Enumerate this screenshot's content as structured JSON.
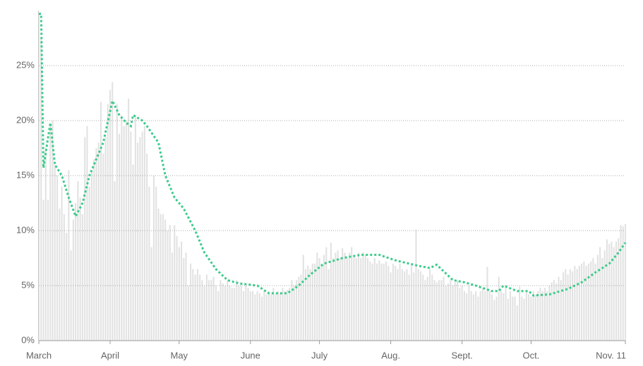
{
  "chart_data": {
    "type": "bar",
    "xlim": [
      0,
      255
    ],
    "xticks": [
      {
        "value": 0,
        "label": "March"
      },
      {
        "value": 31,
        "label": "April"
      },
      {
        "value": 61,
        "label": "May"
      },
      {
        "value": 92,
        "label": "June"
      },
      {
        "value": 122,
        "label": "July"
      },
      {
        "value": 153,
        "label": "Aug."
      },
      {
        "value": 184,
        "label": "Sept."
      },
      {
        "value": 214,
        "label": "Oct."
      },
      {
        "value": 255,
        "label": "Nov. 11"
      }
    ],
    "ylim": [
      0,
      30
    ],
    "yticks": [
      {
        "value": 0,
        "label": "0%"
      },
      {
        "value": 5,
        "label": "5%"
      },
      {
        "value": 10,
        "label": "10%"
      },
      {
        "value": 15,
        "label": "15%"
      },
      {
        "value": 20,
        "label": "20%"
      },
      {
        "value": 25,
        "label": "25%"
      }
    ],
    "grid": true,
    "series": [
      {
        "type": "bar",
        "color": "#e2e2e2",
        "values": [
          29.7,
          27.5,
          12.8,
          17.5,
          12.8,
          19.5,
          20,
          16,
          15,
          12,
          14,
          11.5,
          9.8,
          15.5,
          8.2,
          11,
          12.5,
          14.5,
          13,
          11.5,
          18.5,
          19.5,
          14,
          15.5,
          16.5,
          17.5,
          18,
          21.7,
          17,
          18.5,
          21.5,
          22.8,
          23.5,
          14.5,
          21.5,
          18.8,
          20.5,
          19.5,
          20,
          22,
          19,
          16,
          20.5,
          18,
          18.5,
          19,
          19.5,
          17,
          14,
          8.5,
          15,
          14,
          12,
          11.5,
          11.5,
          11,
          10,
          10.5,
          8,
          10.5,
          9.5,
          8.5,
          9,
          7.5,
          8,
          5,
          7,
          6.5,
          6,
          6.5,
          6,
          5.5,
          5,
          6,
          5.5,
          5.5,
          5.8,
          5,
          4.5,
          5.5,
          5.2,
          5,
          5.5,
          5,
          4.8,
          4.8,
          5.5,
          5,
          5,
          4.5,
          5,
          4.8,
          4.5,
          4.5,
          4.2,
          4.5,
          4.3,
          4,
          4.5,
          4.2,
          4.5,
          4.2,
          4.8,
          4.2,
          4.5,
          4.3,
          4.8,
          4.5,
          4.6,
          4.8,
          5.5,
          5,
          5.5,
          5.8,
          6,
          7.8,
          6.5,
          6.8,
          6.5,
          7,
          7,
          8,
          7.5,
          7,
          7.8,
          8.5,
          6.5,
          8.9,
          7.5,
          8,
          8.2,
          7.5,
          8.4,
          8,
          7.5,
          8,
          8.5,
          7.8,
          7.5,
          8,
          7.5,
          8,
          7.8,
          7.5,
          7.2,
          7,
          7.5,
          7,
          7.3,
          7,
          7,
          7.2,
          6.8,
          6.2,
          7,
          6.8,
          6.5,
          7,
          6.5,
          6.3,
          6.5,
          6,
          6.8,
          6.2,
          10.1,
          6.5,
          6.3,
          6,
          5.5,
          5.8,
          6.5,
          6,
          5.5,
          5.3,
          5.5,
          5.5,
          5.8,
          5,
          5.2,
          5.5,
          5,
          5.3,
          5.5,
          4.8,
          5,
          4.5,
          4.3,
          5,
          4.5,
          4.2,
          4.5,
          4,
          4.5,
          4.8,
          4.5,
          6.7,
          4.5,
          4.2,
          3.7,
          4,
          5.8,
          4.5,
          4.3,
          4.8,
          3.8,
          4.5,
          4,
          4,
          3.2,
          4.9,
          4,
          3.8,
          4.5,
          4.2,
          4,
          4.5,
          4.2,
          4.5,
          4.8,
          4.5,
          4.8,
          4.5,
          5,
          5.3,
          5.5,
          5.2,
          5.8,
          5.5,
          6.2,
          6.5,
          6,
          6.5,
          6.3,
          6.8,
          6.5,
          6.8,
          7,
          7.2,
          6.8,
          7,
          7.2,
          7.5,
          7,
          7.8,
          8.5,
          7.5,
          8.2,
          9.2,
          8.8,
          9,
          8.5,
          9,
          9.3,
          10.5,
          10.4,
          10.6
        ]
      },
      {
        "type": "line",
        "color": "#3ccb8b",
        "x": [
          0,
          1,
          2,
          5,
          7,
          10,
          13,
          16,
          19,
          22,
          26,
          28,
          32,
          35,
          38,
          40,
          41,
          45,
          47,
          52,
          55,
          59,
          63,
          68,
          72,
          77,
          82,
          87,
          95,
          100,
          108,
          113,
          118,
          124,
          132,
          140,
          148,
          155,
          165,
          170,
          173,
          180,
          185,
          190,
          197,
          200,
          202,
          208,
          213,
          215,
          222,
          230,
          236,
          242,
          248,
          252,
          255
        ],
        "values": [
          29.7,
          29.7,
          15.7,
          19.8,
          16,
          15,
          13,
          11.3,
          12.5,
          15,
          17,
          18,
          21.8,
          20.5,
          19.8,
          19.5,
          20.5,
          20,
          19.5,
          18,
          15,
          13,
          12,
          10,
          8,
          6.5,
          5.5,
          5.2,
          5,
          4.3,
          4.3,
          5,
          6,
          7,
          7.5,
          7.8,
          7.8,
          7.3,
          6.8,
          6.6,
          6.9,
          5.5,
          5.3,
          5,
          4.5,
          4.5,
          5,
          4.5,
          4.5,
          4.1,
          4.2,
          4.7,
          5.3,
          6.2,
          7,
          8,
          8.9
        ]
      }
    ]
  }
}
